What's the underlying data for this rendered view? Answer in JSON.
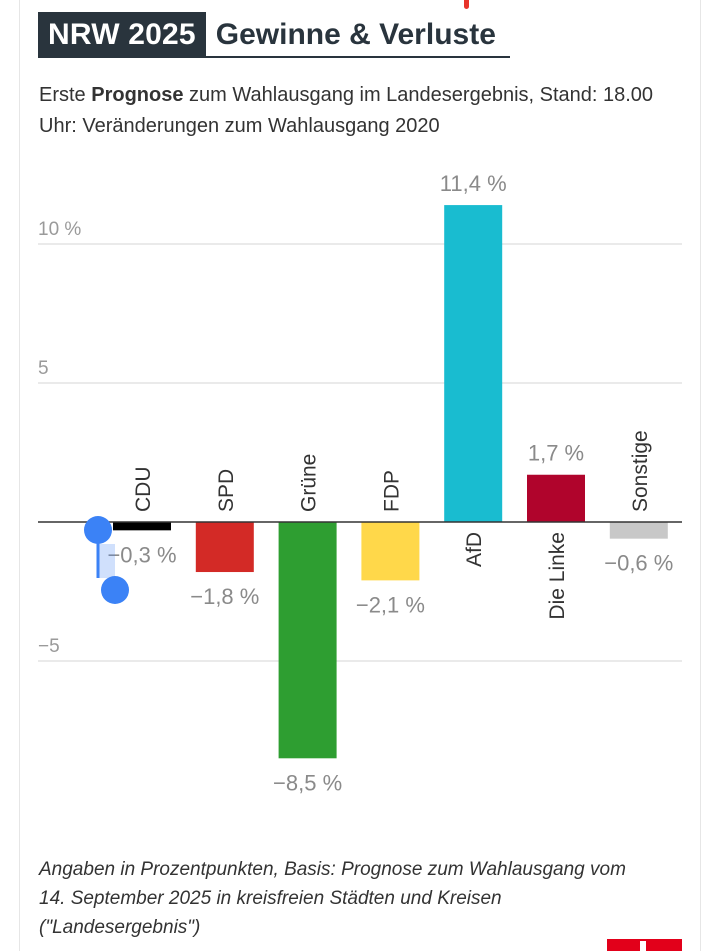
{
  "header": {
    "badge": "NRW 2025",
    "title": "Gewinne & Verluste",
    "subtitle_pre": "Erste ",
    "subtitle_bold": "Prognose",
    "subtitle_post": " zum Wahlausgang im Landesergebnis, Stand: 18.00 Uhr: Veränderungen zum Wahlausgang 2020"
  },
  "footnote": "Angaben in Prozentpunkten, Basis: Prognose zum Wahlausgang vom 14. September 2025 in kreisfreien Städten und Kreisen (\"Landesergebnis\")",
  "chart_data": {
    "type": "bar",
    "title": "Gewinne & Verluste",
    "xlabel": "",
    "ylabel": "",
    "ylim": [
      -8.5,
      11.4
    ],
    "grid": true,
    "y_ticks": [
      {
        "value": 10,
        "label": "10 %"
      },
      {
        "value": 5,
        "label": "5"
      },
      {
        "value": -5,
        "label": "−5"
      }
    ],
    "categories": [
      "CDU",
      "SPD",
      "Grüne",
      "FDP",
      "AfD",
      "Die Linke",
      "Sonstige"
    ],
    "values": [
      -0.3,
      -1.8,
      -8.5,
      -2.1,
      11.4,
      1.7,
      -0.6
    ],
    "value_labels": [
      "−0,3 %",
      "−1,8 %",
      "−8,5 %",
      "−2,1 %",
      "11,4 %",
      "1,7 %",
      "−0,6 %"
    ],
    "colors": [
      "#000000",
      "#d32a26",
      "#2e9e31",
      "#ffd84a",
      "#19bcd0",
      "#b0042c",
      "#c8c8c8"
    ]
  }
}
